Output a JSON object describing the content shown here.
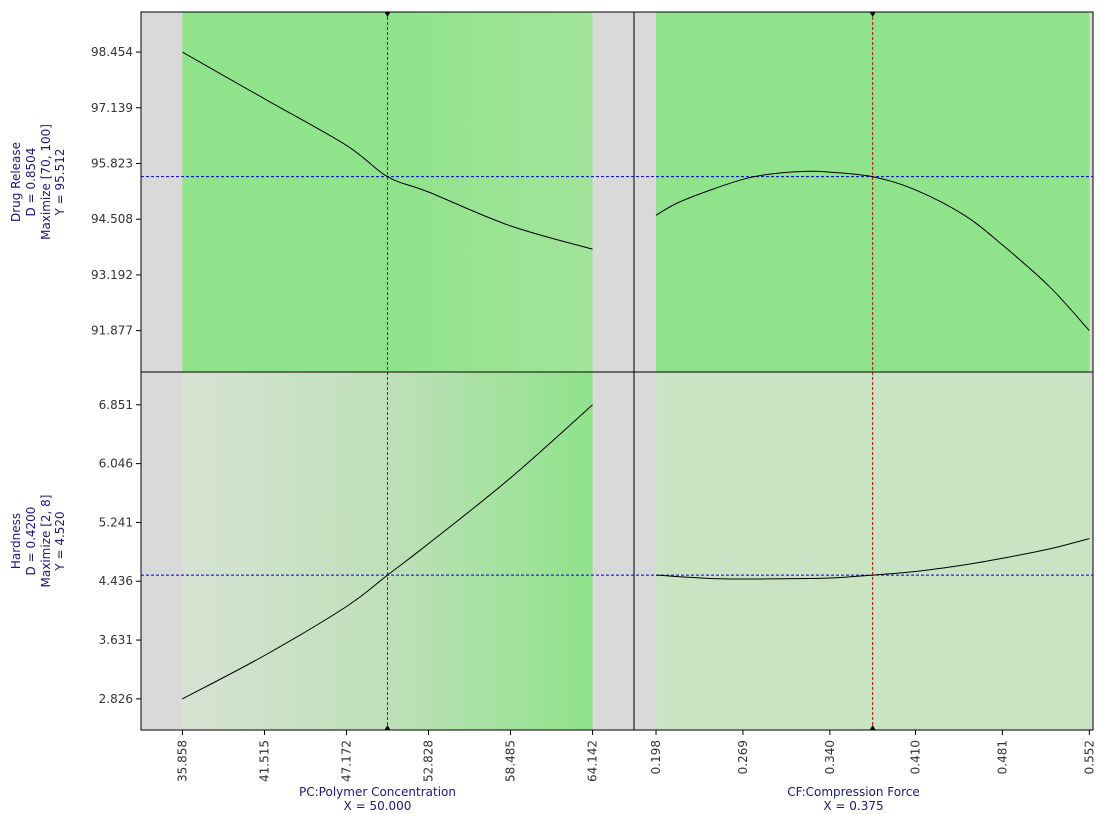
{
  "chart_data": {
    "type": "line",
    "grid": false,
    "colors": {
      "background": "#d9d9d9",
      "desirable_light": "#d6e6d3",
      "desirable_strong": "#8fe38a",
      "curve": "#000000",
      "current_value_line": "#0000cc",
      "factor_setting_line": "#cc0000",
      "text": "#333333",
      "title_text": "#1a1a7a"
    },
    "factors": [
      {
        "id": "PC",
        "xlabel": "PC:Polymer Concentration",
        "setting_label": "X = 50.000",
        "setting": 50.0,
        "xlim": [
          33.0,
          67.0
        ],
        "ticks": [
          "35.858",
          "41.515",
          "47.172",
          "52.828",
          "58.485",
          "64.142"
        ],
        "range": [
          35.858,
          64.142
        ]
      },
      {
        "id": "CF",
        "xlabel": "CF:Compression Force",
        "setting_label": "X = 0.375",
        "setting": 0.375,
        "xlim": [
          0.18,
          0.555
        ],
        "ticks": [
          "0.198",
          "0.269",
          "0.340",
          "0.410",
          "0.481",
          "0.552"
        ],
        "range": [
          0.198,
          0.552
        ]
      }
    ],
    "responses": [
      {
        "name_label": "Drug Release",
        "d_label": "D = 0.8504",
        "goal_label": "Maximize [70, 100]",
        "y_label": "Y = 95.512",
        "current": 95.512,
        "ylim": [
          90.9,
          99.4
        ],
        "ticks": [
          "98.454",
          "97.139",
          "95.823",
          "94.508",
          "93.192",
          "91.877"
        ],
        "shade_profile": [
          [
            0,
            "#8fe38a"
          ],
          [
            0.5,
            "#8fe38a"
          ],
          [
            1,
            "#a2e49b"
          ]
        ],
        "shade_profile_cf": [
          [
            0,
            "#8fe38a"
          ],
          [
            1,
            "#8fe38a"
          ]
        ],
        "series": [
          {
            "factor": "PC",
            "x": [
              35.858,
              41.515,
              47.172,
              50.0,
              52.828,
              58.485,
              64.142
            ],
            "y": [
              98.454,
              97.35,
              96.25,
              95.512,
              95.15,
              94.35,
              93.8
            ]
          },
          {
            "factor": "CF",
            "x": [
              0.198,
              0.22,
              0.269,
              0.3,
              0.325,
              0.34,
              0.375,
              0.41,
              0.45,
              0.481,
              0.52,
              0.552
            ],
            "y": [
              94.6,
              94.95,
              95.45,
              95.6,
              95.64,
              95.62,
              95.512,
              95.2,
              94.6,
              93.9,
              92.9,
              91.877
            ]
          }
        ]
      },
      {
        "name_label": "Hardness",
        "d_label": "D = 0.4200",
        "goal_label": "Maximize [2, 8]",
        "y_label": "Y = 4.520",
        "current": 4.52,
        "ylim": [
          2.4,
          7.3
        ],
        "ticks": [
          "6.851",
          "6.046",
          "5.241",
          "4.436",
          "3.631",
          "2.826"
        ],
        "shade_profile": [
          [
            0,
            "#d6e3d3"
          ],
          [
            0.5,
            "#bfe0b9"
          ],
          [
            1,
            "#8fe38a"
          ]
        ],
        "shade_profile_cf": [
          [
            0,
            "#c9e4c3"
          ],
          [
            1,
            "#c9e4c3"
          ]
        ],
        "series": [
          {
            "factor": "PC",
            "x": [
              35.858,
              41.515,
              47.172,
              50.0,
              52.828,
              58.485,
              64.142
            ],
            "y": [
              2.826,
              3.42,
              4.09,
              4.52,
              4.95,
              5.85,
              6.851
            ]
          },
          {
            "factor": "CF",
            "x": [
              0.198,
              0.25,
              0.3,
              0.34,
              0.375,
              0.41,
              0.45,
              0.481,
              0.52,
              0.552
            ],
            "y": [
              4.52,
              4.47,
              4.47,
              4.48,
              4.52,
              4.57,
              4.66,
              4.75,
              4.88,
              5.02
            ]
          }
        ]
      }
    ]
  }
}
